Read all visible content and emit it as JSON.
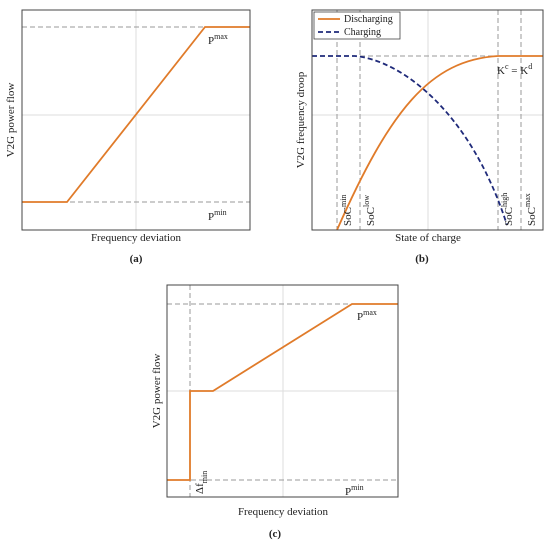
{
  "panels": [
    {
      "caption": "(a)",
      "y_label": "V2G power flow",
      "x_label": "Frequency deviation",
      "annotations": [
        {
          "base": "P",
          "sup": "max"
        },
        {
          "base": "P",
          "sup": "min"
        }
      ]
    },
    {
      "caption": "(b)",
      "y_label": "V2G frequency droop",
      "x_label": "State of charge",
      "legend": [
        "Discharging",
        "Charging"
      ],
      "annotations": [
        {
          "base": "SoC",
          "sup": "min"
        },
        {
          "base": "SoC",
          "sup": "low"
        },
        {
          "base": "SoC",
          "sup": "high"
        },
        {
          "base": "SoC",
          "sup": "max"
        }
      ],
      "equation": {
        "left": "K",
        "left_sup": "c",
        "op": " = ",
        "right": "K",
        "right_sup": "d"
      }
    },
    {
      "caption": "(c)",
      "y_label": "V2G power flow",
      "x_label": "Frequency deviation",
      "annotations": [
        {
          "base": "P",
          "sup": "max"
        },
        {
          "base": "P",
          "sup": "min"
        },
        {
          "base": "Δf",
          "sub": "min"
        }
      ]
    }
  ]
}
